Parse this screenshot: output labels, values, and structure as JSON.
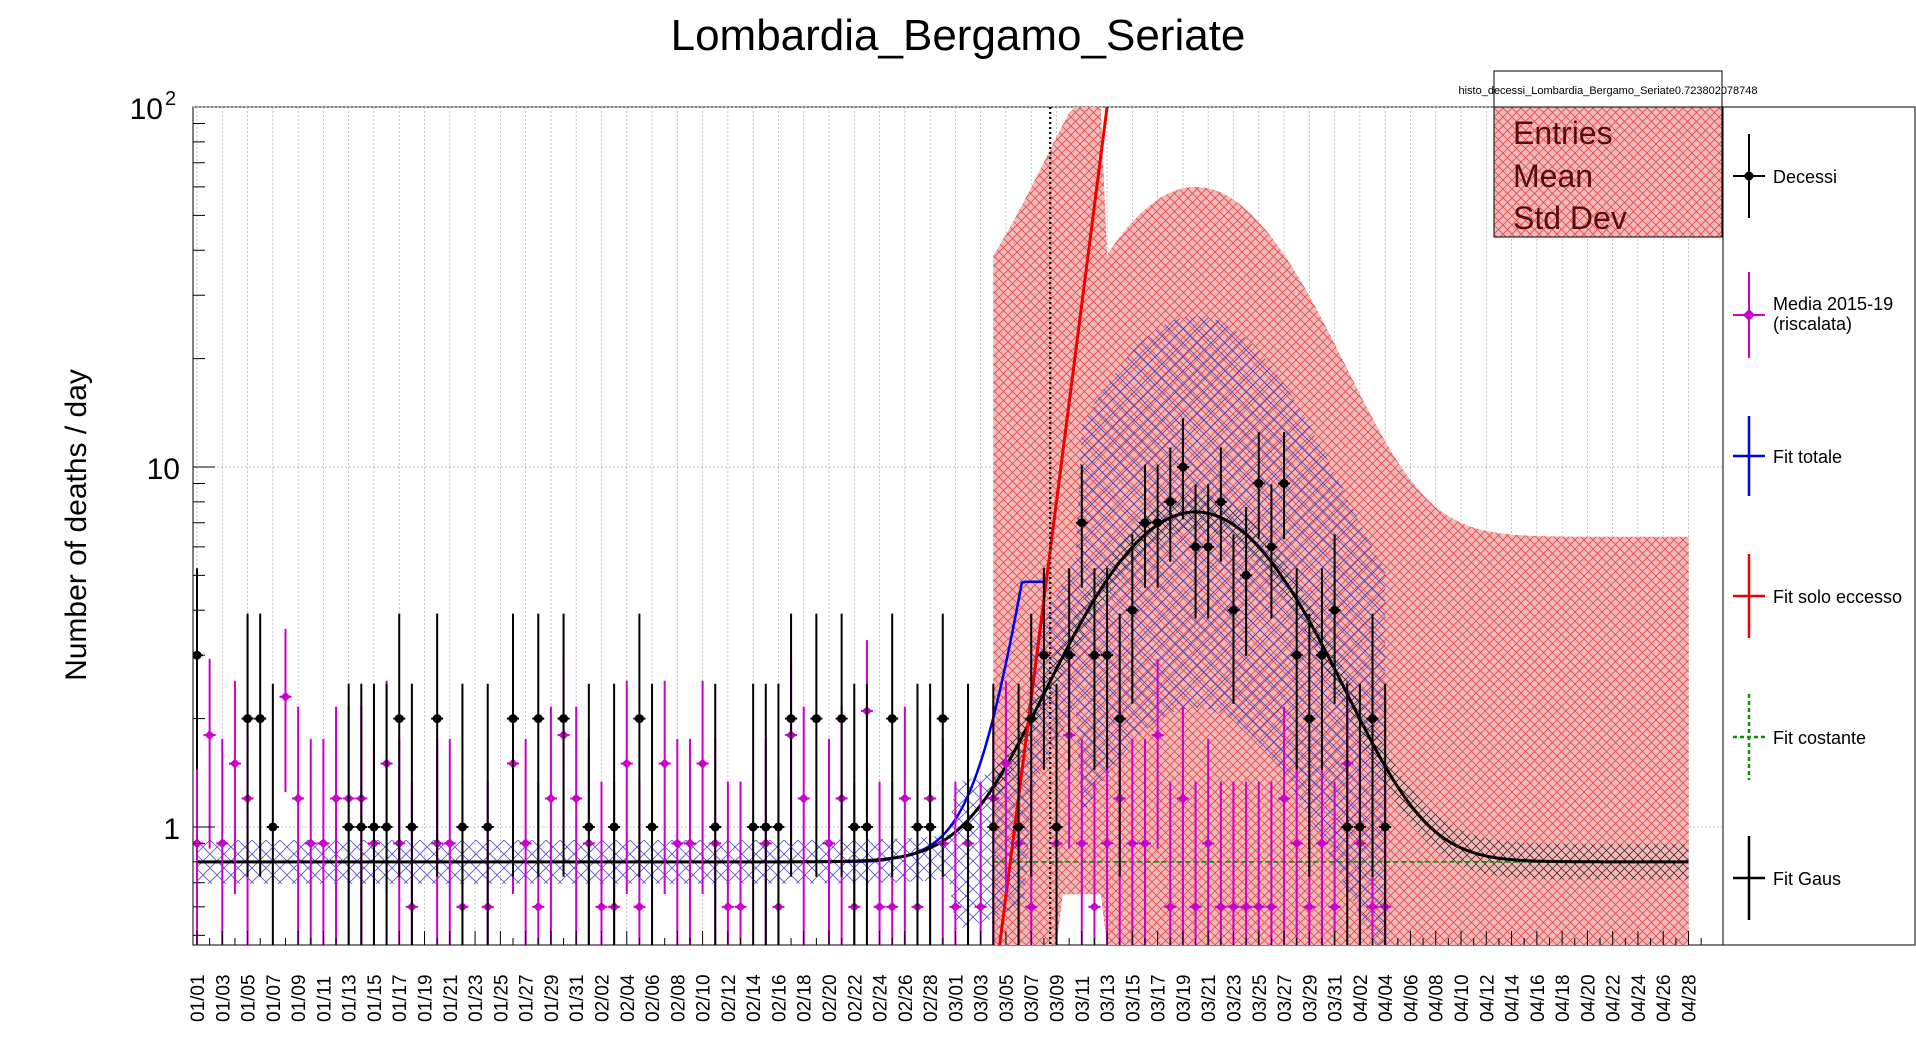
{
  "chart_data": {
    "type": "scatter",
    "title": "Lombardia_Bergamo_Seriate",
    "ylabel": "Number of deaths / day",
    "xlabel": "",
    "yscale": "log",
    "ylim": [
      0.47,
      100
    ],
    "xlim": [
      0,
      119
    ],
    "y_tick_labels": [
      {
        "label": "1",
        "value": 1
      },
      {
        "label": "10",
        "value": 10
      },
      {
        "label": "10",
        "sup": "2",
        "value": 100
      }
    ],
    "x_tick_labels": [
      "01/01",
      "01/03",
      "01/05",
      "01/07",
      "01/09",
      "01/11",
      "01/13",
      "01/15",
      "01/17",
      "01/19",
      "01/21",
      "01/23",
      "01/25",
      "01/27",
      "01/29",
      "01/31",
      "02/02",
      "02/04",
      "02/06",
      "02/08",
      "02/10",
      "02/12",
      "02/14",
      "02/16",
      "02/18",
      "02/20",
      "02/22",
      "02/24",
      "02/26",
      "02/28",
      "03/01",
      "03/03",
      "03/05",
      "03/07",
      "03/09",
      "03/11",
      "03/13",
      "03/15",
      "03/17",
      "03/19",
      "03/21",
      "03/23",
      "03/25",
      "03/27",
      "03/29",
      "03/31",
      "04/02",
      "04/04",
      "04/06",
      "04/08",
      "04/10",
      "04/12",
      "04/14",
      "04/16",
      "04/18",
      "04/20",
      "04/22",
      "04/24",
      "04/26",
      "04/28"
    ],
    "vertical_line_day": 67.5,
    "grid": true,
    "stats_box": {
      "title": "histo_decessi_Lombardia_Bergamo_Seriate0.723802078748",
      "rows": [
        "Entries",
        "Mean",
        "Std Dev"
      ]
    },
    "legend": {
      "placement": "right",
      "entries": [
        {
          "label": "Decessi",
          "color": "#000000",
          "style": "marker"
        },
        {
          "label": "Media 2015-19",
          "label2": "(riscalata)",
          "color": "#cc00cc",
          "style": "marker"
        },
        {
          "label": "Fit totale",
          "color": "#0000ee",
          "style": "line"
        },
        {
          "label": "Fit solo eccesso",
          "color": "#ee0000",
          "style": "line"
        },
        {
          "label": "Fit costante",
          "color": "#009900",
          "style": "dashed"
        },
        {
          "label": "Fit Gaus",
          "color": "#000000",
          "style": "line"
        }
      ]
    },
    "series": [
      {
        "name": "Decessi",
        "color": "#000000",
        "x": [
          0,
          4,
          5,
          6,
          12,
          13,
          14,
          15,
          16,
          17,
          19,
          21,
          23,
          25,
          27,
          29,
          31,
          33,
          35,
          36,
          41,
          44,
          45,
          46,
          47,
          49,
          51,
          52,
          53,
          55,
          57,
          58,
          59,
          61,
          63,
          65,
          66,
          67,
          68,
          69,
          70,
          71,
          72,
          73,
          74,
          75,
          76,
          77,
          78,
          79,
          80,
          81,
          82,
          83,
          84,
          85,
          86,
          87,
          88,
          89,
          90,
          91,
          92,
          93,
          94
        ],
        "y": [
          3,
          2,
          2,
          1,
          1,
          1,
          1,
          1,
          2,
          1,
          2,
          1,
          1,
          2,
          2,
          2,
          1,
          1,
          2,
          1,
          1,
          1,
          1,
          1,
          2,
          2,
          2,
          1,
          1,
          2,
          1,
          1,
          2,
          1,
          1,
          1,
          2,
          3,
          1,
          3,
          7,
          3,
          3,
          2,
          4,
          7,
          7,
          8,
          10,
          6,
          6,
          8,
          4,
          5,
          9,
          6,
          9,
          3,
          2,
          3,
          4,
          1,
          1,
          2,
          1
        ]
      },
      {
        "name": "Media 2015-19",
        "color": "#cc00cc",
        "x": [
          0,
          1,
          2,
          3,
          4,
          7,
          8,
          9,
          10,
          11,
          12,
          13,
          14,
          15,
          16,
          17,
          19,
          20,
          21,
          23,
          25,
          26,
          27,
          28,
          29,
          30,
          31,
          32,
          33,
          34,
          35,
          37,
          38,
          39,
          40,
          41,
          42,
          43,
          45,
          46,
          47,
          48,
          50,
          51,
          52,
          53,
          54,
          55,
          56,
          57,
          58,
          59,
          60,
          61,
          62,
          63,
          64,
          65,
          66,
          68,
          69,
          70,
          71,
          72,
          73,
          74,
          75,
          76,
          77,
          78,
          79,
          80,
          81,
          82,
          83,
          84,
          85,
          86,
          87,
          88,
          89,
          90,
          91,
          92,
          93,
          94
        ],
        "y": [
          0.9,
          1.8,
          0.9,
          1.5,
          1.2,
          2.3,
          1.2,
          0.9,
          0.9,
          1.2,
          1.2,
          1.2,
          0.9,
          1.5,
          0.9,
          0.6,
          0.9,
          0.9,
          0.6,
          0.6,
          1.5,
          0.9,
          0.6,
          1.2,
          1.8,
          1.2,
          0.9,
          0.6,
          0.6,
          1.5,
          0.6,
          1.5,
          0.9,
          0.9,
          1.5,
          0.9,
          0.6,
          0.6,
          0.9,
          0.6,
          1.8,
          1.2,
          0.9,
          1.2,
          0.6,
          2.1,
          0.6,
          0.6,
          1.2,
          0.6,
          1.2,
          0.9,
          0.6,
          0.9,
          0.6,
          1.2,
          1.5,
          0.9,
          0.6,
          0.9,
          1.8,
          0.9,
          0.6,
          0.9,
          1.2,
          0.9,
          0.9,
          1.8,
          0.6,
          1.2,
          0.6,
          0.9,
          0.6,
          0.6,
          0.6,
          0.6,
          0.6,
          1.2,
          0.9,
          0.6,
          0.9,
          0.6,
          1.5,
          0.9,
          0.6,
          0.6
        ]
      }
    ],
    "fits": {
      "fit_gaus": {
        "color": "#000000",
        "baseline": 0.8,
        "amplitude": 6.7,
        "mean": 79,
        "sigma": 7,
        "x_range": [
          0,
          118
        ]
      },
      "fit_totale": {
        "color": "#0000ee",
        "baseline": 0.8,
        "x_range": [
          0,
          67
        ]
      },
      "fit_solo_eccesso": {
        "color": "#ee0000",
        "x_start": 63.5,
        "y_start": 0.47,
        "x_end": 72,
        "y_end": 100
      },
      "fit_costante": {
        "color": "#009900",
        "value": 0.8,
        "x_range": [
          63,
          118
        ]
      }
    }
  }
}
